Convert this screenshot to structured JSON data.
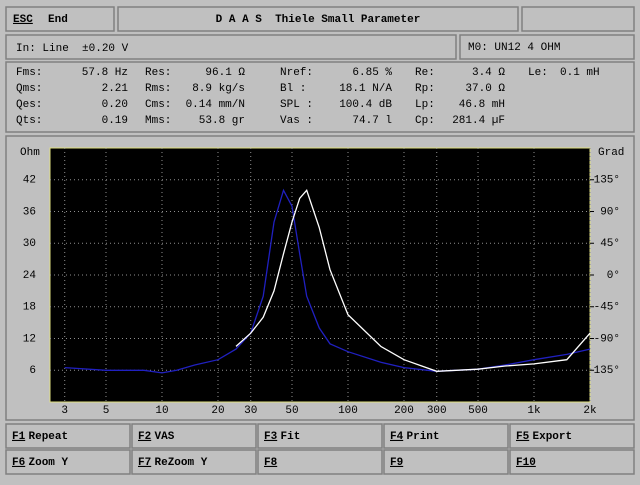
{
  "header": {
    "esc_key": "ESC",
    "esc_label": "End",
    "title": "D A A S  Thiele Small Parameter"
  },
  "input": "In: Line  ±0.20 V",
  "model": "M0: UN12 4 OHM",
  "parameters": [
    [
      {
        "label": "Fms:",
        "value": "57.8 Hz"
      },
      {
        "label": "Res:",
        "value": "96.1 Ω"
      },
      {
        "label": "Nref:",
        "value": "6.85 %"
      },
      {
        "label": "Re:",
        "value": "3.4 Ω"
      },
      {
        "label": "Le:",
        "value": "0.1 mH"
      }
    ],
    [
      {
        "label": "Qms:",
        "value": "2.21"
      },
      {
        "label": "Rms:",
        "value": "8.9 kg/s"
      },
      {
        "label": "Bl  :",
        "value": "18.1 N/A"
      },
      {
        "label": "Rp:",
        "value": "37.0 Ω"
      }
    ],
    [
      {
        "label": "Qes:",
        "value": "0.20"
      },
      {
        "label": "Cms:",
        "value": "0.14 mm/N"
      },
      {
        "label": "SPL :",
        "value": "100.4 dB"
      },
      {
        "label": "Lp:",
        "value": "46.8 mH"
      }
    ],
    [
      {
        "label": "Qts:",
        "value": "0.19"
      },
      {
        "label": "Mms:",
        "value": "53.8 gr"
      },
      {
        "label": "Vas :",
        "value": "74.7 l"
      },
      {
        "label": "Cp:",
        "value": "281.4 µF"
      }
    ]
  ],
  "chart_data": {
    "type": "line",
    "y_label": "Ohm",
    "y2_label": "Grad",
    "xlog": true,
    "grid": true,
    "x": [
      3,
      5,
      8,
      10,
      12,
      15,
      20,
      25,
      30,
      35,
      40,
      45,
      50,
      55,
      60,
      70,
      80,
      100,
      150,
      200,
      300,
      500,
      700,
      1000,
      1500,
      2000
    ],
    "series": [
      {
        "color": "#2020c0",
        "values": [
          6.5,
          6,
          6,
          5.5,
          6,
          7,
          8,
          10,
          13,
          20,
          34,
          40,
          37,
          28,
          20,
          14,
          11,
          9.5,
          7.5,
          6.5,
          5.8,
          6.2,
          7,
          8,
          9,
          10
        ]
      },
      {
        "color": "#ffffff",
        "values": [
          null,
          null,
          null,
          null,
          null,
          null,
          null,
          10.5,
          13,
          16,
          21,
          28,
          34,
          38.5,
          40,
          33,
          25,
          16.5,
          10.5,
          8,
          5.8,
          6.2,
          6.8,
          7.2,
          8,
          13
        ]
      }
    ],
    "xlim": [
      2.5,
      2000
    ],
    "xticks": [
      3,
      5,
      10,
      20,
      30,
      50,
      100,
      200,
      300,
      500,
      {
        "value": 1000,
        "label": "1k"
      },
      {
        "value": 2000,
        "label": "2k"
      }
    ],
    "ylim": [
      0,
      48
    ],
    "yticks": [
      6,
      12,
      18,
      24,
      30,
      36,
      42
    ],
    "y2lim": [
      -180,
      180
    ],
    "y2ticks": [
      {
        "value": 135,
        "label": "135°"
      },
      {
        "value": 90,
        "label": "90°"
      },
      {
        "value": 45,
        "label": "45°"
      },
      {
        "value": 0,
        "label": "0°"
      },
      {
        "value": -45,
        "label": "-45°"
      },
      {
        "value": -90,
        "label": "-90°"
      },
      {
        "value": -135,
        "label": "-135°"
      }
    ]
  },
  "function_keys": [
    {
      "key": "F1",
      "label": "Repeat"
    },
    {
      "key": "F2",
      "label": "VAS"
    },
    {
      "key": "F3",
      "label": "Fit"
    },
    {
      "key": "F4",
      "label": "Print"
    },
    {
      "key": "F5",
      "label": "Export"
    },
    {
      "key": "F6",
      "label": "Zoom Y"
    },
    {
      "key": "F7",
      "label": "ReZoom Y"
    },
    {
      "key": "F8"
    },
    {
      "key": "F9"
    },
    {
      "key": "F10"
    }
  ]
}
